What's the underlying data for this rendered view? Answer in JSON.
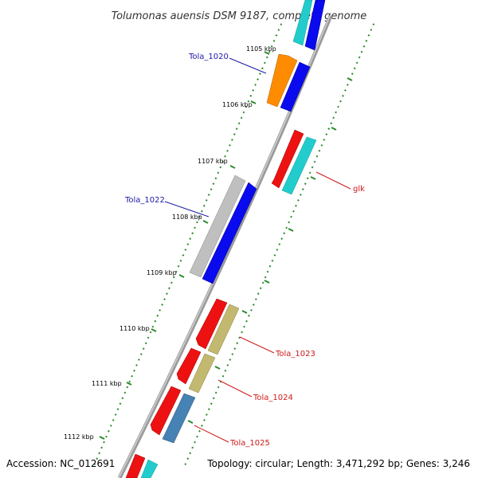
{
  "title": "Tolumonas auensis DSM 9187, complete genome",
  "footer": {
    "accession": "Accession: NC_012691",
    "topology": "Topology: circular; Length: 3,471,292 bp; Genes: 3,246"
  },
  "ticks": [
    {
      "label": "1105 kbp"
    },
    {
      "label": "1106 kbp"
    },
    {
      "label": "1107 kbp"
    },
    {
      "label": "1108 kbp"
    },
    {
      "label": "1109 kbp"
    },
    {
      "label": "1110 kbp"
    },
    {
      "label": "1111 kbp"
    },
    {
      "label": "1112 kbp"
    }
  ],
  "gene_labels": [
    {
      "name": "Tola_1020",
      "color": "#1a1aa8"
    },
    {
      "name": "Tola_1022",
      "color": "#1a1aa8"
    },
    {
      "name": "glk",
      "color": "#cc1a1a"
    },
    {
      "name": "Tola_1023",
      "color": "#cc1a1a"
    },
    {
      "name": "Tola_1024",
      "color": "#cc1a1a"
    },
    {
      "name": "Tola_1025",
      "color": "#cc1a1a"
    }
  ],
  "colors": {
    "backbone": "#888888",
    "tick": "#2a8a2a",
    "forward_gene": "#0a0aee",
    "orange_gene": "#ff8c00",
    "gray_gene": "#bfbfbf",
    "red_gene": "#ee1111",
    "cyan_gene": "#22cccc",
    "khaki_gene": "#c2b870",
    "steelblue_gene": "#4682b4"
  }
}
